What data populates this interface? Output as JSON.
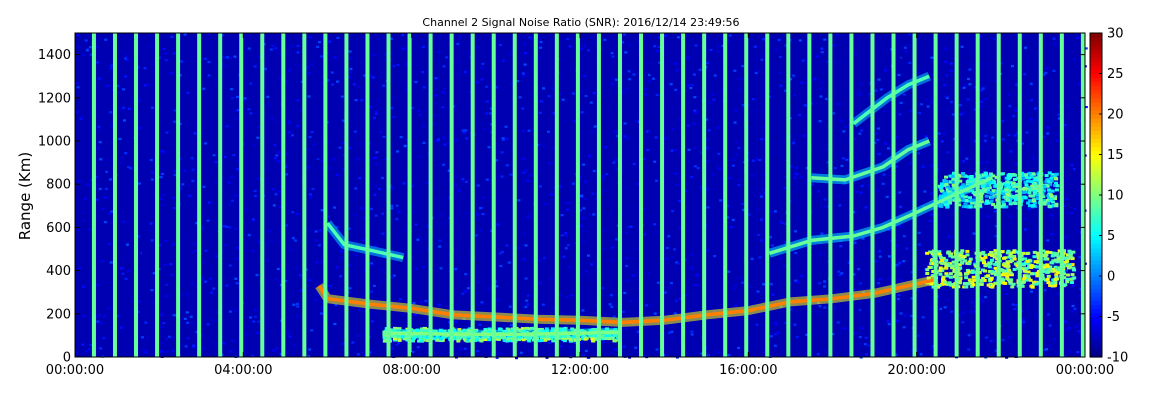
{
  "chart_data": {
    "type": "heatmap",
    "title": "Channel 2 Signal Noise Ratio (SNR): 2016/12/14 23:49:56",
    "xlabel": "",
    "ylabel": "Range (Km)",
    "x_range_hours": [
      0,
      24
    ],
    "x_ticks": [
      {
        "hour": 0,
        "label": "00:00:00"
      },
      {
        "hour": 4,
        "label": "04:00:00"
      },
      {
        "hour": 8,
        "label": "08:00:00"
      },
      {
        "hour": 12,
        "label": "12:00:00"
      },
      {
        "hour": 16,
        "label": "16:00:00"
      },
      {
        "hour": 20,
        "label": "20:00:00"
      },
      {
        "hour": 24,
        "label": "00:00:00"
      }
    ],
    "ylim": [
      0,
      1500
    ],
    "y_ticks": [
      0,
      200,
      400,
      600,
      800,
      1000,
      1200,
      1400
    ],
    "colorbar": {
      "min": -10,
      "max": 30,
      "ticks": [
        -10,
        -5,
        0,
        5,
        10,
        15,
        20,
        25,
        30
      ],
      "colormap": "jet"
    },
    "background_snr": -8,
    "grid": false,
    "vertical_stripes": {
      "description": "periodic full-range bands of elevated SNR",
      "start_hour": 0.45,
      "interval_hours": 0.5,
      "snr": 9
    },
    "echo_traces": [
      {
        "name_hidden": true,
        "snr": 8,
        "points": [
          [
            6.0,
            620
          ],
          [
            6.4,
            520
          ],
          [
            7.0,
            495
          ],
          [
            7.8,
            460
          ]
        ]
      },
      {
        "name_hidden": true,
        "snr": 20,
        "points": [
          [
            5.8,
            330
          ],
          [
            6.0,
            270
          ],
          [
            7.0,
            245
          ],
          [
            8.0,
            225
          ],
          [
            9.0,
            195
          ],
          [
            10.0,
            185
          ],
          [
            11.0,
            175
          ],
          [
            12.0,
            170
          ],
          [
            13.0,
            160
          ],
          [
            14.0,
            170
          ],
          [
            15.0,
            195
          ],
          [
            16.0,
            215
          ],
          [
            17.0,
            255
          ],
          [
            18.0,
            270
          ],
          [
            19.0,
            295
          ],
          [
            19.8,
            330
          ],
          [
            20.5,
            360
          ]
        ]
      },
      {
        "name_hidden": true,
        "snr": 10,
        "points": [
          [
            7.5,
            110
          ],
          [
            9.0,
            105
          ],
          [
            10.5,
            105
          ],
          [
            12.0,
            110
          ],
          [
            12.9,
            115
          ]
        ]
      },
      {
        "name_hidden": true,
        "snr": 9,
        "points": [
          [
            16.5,
            480
          ],
          [
            17.5,
            540
          ],
          [
            18.5,
            560
          ],
          [
            19.2,
            600
          ],
          [
            20.0,
            670
          ],
          [
            21.0,
            760
          ],
          [
            21.8,
            830
          ]
        ]
      },
      {
        "name_hidden": true,
        "snr": 9,
        "points": [
          [
            17.5,
            830
          ],
          [
            18.3,
            820
          ],
          [
            19.2,
            880
          ],
          [
            19.8,
            960
          ],
          [
            20.3,
            1000
          ]
        ]
      },
      {
        "name_hidden": true,
        "snr": 8,
        "points": [
          [
            18.5,
            1080
          ],
          [
            19.3,
            1200
          ],
          [
            19.8,
            1260
          ],
          [
            20.3,
            1300
          ]
        ]
      }
    ],
    "echo_patches": [
      {
        "x": [
          20.2,
          23.7
        ],
        "y": [
          330,
          500
        ],
        "snr": 12
      },
      {
        "x": [
          20.5,
          23.3
        ],
        "y": [
          700,
          860
        ],
        "snr": 7
      },
      {
        "x": [
          7.3,
          12.9
        ],
        "y": [
          80,
          140
        ],
        "snr": 10
      }
    ]
  }
}
